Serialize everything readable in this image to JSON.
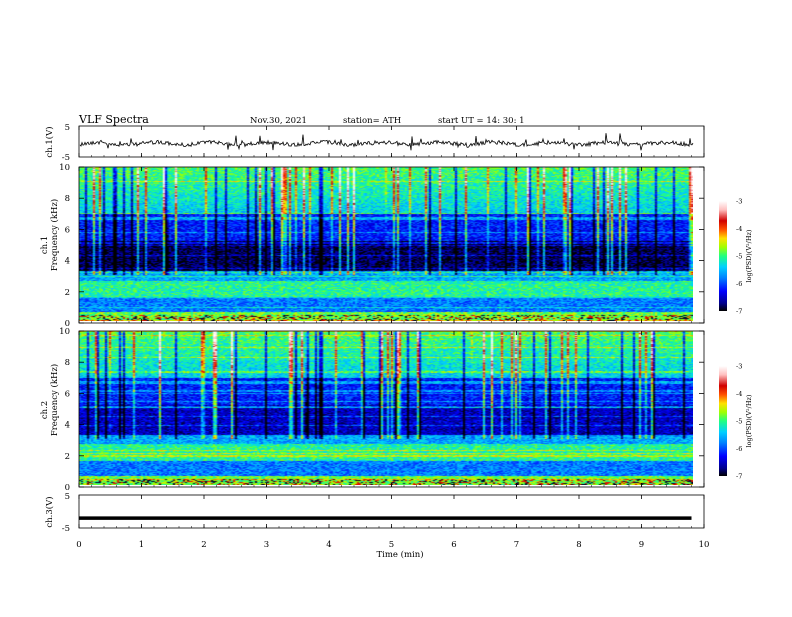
{
  "header": {
    "title": "VLF  Spectra",
    "date": "Nov.30, 2021",
    "station": "station= ATH",
    "start": "start  UT  =   14: 30: 1"
  },
  "colors": {
    "background": "#ffffff",
    "axis": "#000000",
    "colormap": [
      "#000000",
      "#00008c",
      "#0000ff",
      "#0080ff",
      "#00d0ff",
      "#20ff80",
      "#a0ff00",
      "#ffe000",
      "#ff5000",
      "#d00000",
      "#ffc0c0",
      "#ffffff"
    ]
  },
  "chart_data": [
    {
      "type": "line",
      "panel": "ch1",
      "ylabel": "ch.1(V)",
      "ylim": [
        -5,
        5
      ],
      "yticks": [
        "5",
        "-5"
      ],
      "xlim": [
        0,
        10
      ],
      "description_values": "broadband waveform, roughly -1.5 to +1 V with spikes up to about 2.5 V",
      "x": [
        0,
        1,
        2,
        3,
        4,
        5,
        6,
        7,
        8,
        9,
        9.8
      ],
      "y": [
        0,
        0.1,
        -0.2,
        0,
        0.3,
        -0.2,
        0,
        0.1,
        -0.1,
        0.1,
        0
      ]
    },
    {
      "type": "heatmap",
      "panel": "ch2",
      "ylabel_top": "ch.1",
      "ylabel": "Frequency  (kHz)",
      "ylim": [
        0,
        10
      ],
      "yticks": [
        "0",
        "2",
        "4",
        "6",
        "8",
        "10"
      ],
      "xlim": [
        0,
        10
      ],
      "data_xmax": 9.8,
      "colorbar": {
        "label": "log(PSD)(V²/Hz)",
        "range": [
          -7,
          -3
        ],
        "ticks": [
          "-3",
          "-4",
          "-5",
          "-6",
          "-7"
        ]
      }
    },
    {
      "type": "heatmap",
      "panel": "ch3",
      "ylabel_top": "ch.2",
      "ylabel": "Frequency  (kHz)",
      "ylim": [
        0,
        10
      ],
      "yticks": [
        "0",
        "2",
        "4",
        "6",
        "8",
        "10"
      ],
      "xlim": [
        0,
        10
      ],
      "data_xmax": 9.8,
      "colorbar": {
        "label": "log(PSD)(V²/Hz)",
        "range": [
          -7,
          -3
        ],
        "ticks": [
          "-3",
          "-4",
          "-5",
          "-6",
          "-7"
        ]
      }
    },
    {
      "type": "line",
      "panel": "ch4",
      "ylabel": "ch.3(V)",
      "ylim": [
        -5,
        5
      ],
      "yticks": [
        "5",
        "-5"
      ],
      "xlim": [
        0,
        10
      ],
      "xlabel": "Time  (min)",
      "xticks": [
        "0",
        "1",
        "2",
        "3",
        "4",
        "5",
        "6",
        "7",
        "8",
        "9",
        "10"
      ],
      "x": [
        0,
        9.8
      ],
      "y": [
        -2,
        -2
      ]
    }
  ]
}
